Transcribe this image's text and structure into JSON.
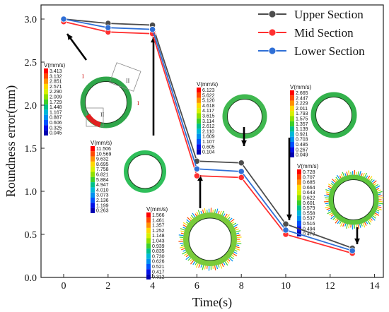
{
  "chart_data": {
    "type": "line",
    "xlabel": "Time(s)",
    "ylabel": "Roundness error(mm)",
    "xlim": [
      -1,
      14
    ],
    "ylim": [
      0,
      3.2
    ],
    "x_ticks": [
      "0",
      "2",
      "4",
      "6",
      "8",
      "10",
      "12",
      "14"
    ],
    "y_ticks": [
      "0.0",
      "0.5",
      "1.0",
      "1.5",
      "2.0",
      "2.5",
      "3.0"
    ],
    "legend_position": "top-right",
    "x": [
      0,
      2,
      4,
      6,
      8,
      10,
      13
    ],
    "series": [
      {
        "name": "Upper Section",
        "color": "#4d4d4d",
        "values": [
          3.0,
          2.95,
          2.93,
          1.35,
          1.33,
          0.62,
          0.34
        ]
      },
      {
        "name": "Mid Section",
        "color": "#ff3030",
        "values": [
          2.97,
          2.85,
          2.83,
          1.18,
          1.16,
          0.5,
          0.28
        ]
      },
      {
        "name": "Lower Section",
        "color": "#2f6fd6",
        "values": [
          3.0,
          2.9,
          2.88,
          1.26,
          1.23,
          0.55,
          0.31
        ]
      }
    ],
    "insets": [
      {
        "title": "V(mm/s)",
        "values": [
          "3.413",
          "3.132",
          "2.851",
          "2.571",
          "2.290",
          "2.009",
          "1.729",
          "1.448",
          "1.167",
          "0.887",
          "0.606",
          "0.325",
          "0.045"
        ],
        "ring_color": "#2fa64a",
        "labels": [
          "I",
          "II",
          "I",
          "II"
        ]
      },
      {
        "title": "V(mm/s)",
        "values": [
          "11.506",
          "10.569",
          "9.632",
          "8.695",
          "7.758",
          "6.821",
          "5.884",
          "4.947",
          "4.010",
          "3.073",
          "2.136",
          "1.199",
          "0.263"
        ],
        "ring_color": "#2fbf5a"
      },
      {
        "title": "V(mm/s)",
        "values": [
          "1.566",
          "1.461",
          "1.357",
          "1.252",
          "1.148",
          "1.043",
          "0.939",
          "0.835",
          "0.730",
          "0.626",
          "0.521",
          "0.417",
          "0.312"
        ],
        "ring_color": "#7acb3a"
      },
      {
        "title": "V(mm/s)",
        "values": [
          "6.123",
          "5.622",
          "5.120",
          "4.618",
          "4.117",
          "3.615",
          "3.114",
          "2.612",
          "2.110",
          "1.609",
          "1.107",
          "0.605",
          "0.104"
        ],
        "ring_color": "#3fb84f"
      },
      {
        "title": "V(mm/s)",
        "values": [
          "2.665",
          "2.447",
          "2.229",
          "2.011",
          "1.793",
          "1.575",
          "1.357",
          "1.139",
          "0.921",
          "0.703",
          "0.485",
          "0.267",
          "0.049"
        ],
        "ring_color": "#33b24c"
      },
      {
        "title": "V(mm/s)",
        "values": [
          "0.728",
          "0.707",
          "0.685",
          "0.664",
          "0.643",
          "0.622",
          "0.601",
          "0.579",
          "0.558",
          "0.537",
          "0.516",
          "0.494",
          "0.473"
        ],
        "ring_color": "#5ec63c"
      }
    ]
  },
  "colorbar_colors": [
    "#ff0000",
    "#ff4a00",
    "#ff9100",
    "#ffd800",
    "#d8f000",
    "#8ee000",
    "#3ccf2a",
    "#00c08a",
    "#00b8d8",
    "#0090f0",
    "#0052ff",
    "#0010e8",
    "#0000b0"
  ]
}
